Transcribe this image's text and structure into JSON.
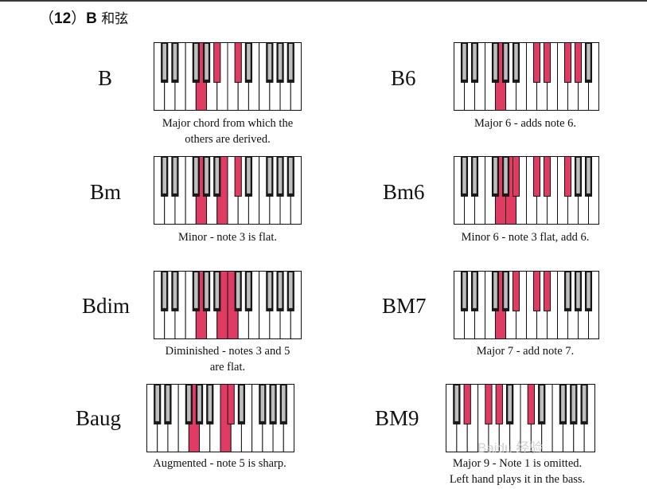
{
  "heading": {
    "num": "12",
    "note": "B",
    "zh": "和弦"
  },
  "colors": {
    "highlight": "#e03b62",
    "black_key": "#1b1b1b",
    "black_key_face": "#bfbfbf",
    "white_key": "#ffffff",
    "outline": "#111111"
  },
  "chords": [
    {
      "name": "B",
      "caption": [
        "Major chord from which the",
        "others are derived."
      ],
      "white_hl": [
        4
      ],
      "black_hl": [
        4,
        5
      ]
    },
    {
      "name": "B6",
      "caption": [
        "Major 6 - adds note 6."
      ],
      "white_hl": [
        4
      ],
      "black_hl": [
        5,
        6,
        7,
        8
      ]
    },
    {
      "name": "Bm",
      "caption": [
        "Minor - note 3 is flat."
      ],
      "white_hl": [
        4,
        6
      ],
      "black_hl": [
        5
      ]
    },
    {
      "name": "Bm6",
      "caption": [
        "Minor 6 - note 3 flat, add 6."
      ],
      "white_hl": [
        4,
        5
      ],
      "black_hl": [
        4,
        5,
        6,
        7
      ]
    },
    {
      "name": "Bdim",
      "caption": [
        "Diminished - notes 3 and 5",
        "are flat."
      ],
      "white_hl": [
        4,
        6,
        7
      ],
      "black_hl": []
    },
    {
      "name": "BM7",
      "caption": [
        "Major 7 - add note 7."
      ],
      "white_hl": [
        4
      ],
      "black_hl": [
        4,
        5,
        6
      ]
    },
    {
      "name": "Baug",
      "caption": [
        "Augmented - note 5 is sharp."
      ],
      "white_hl": [
        4,
        7
      ],
      "black_hl": [
        5
      ]
    },
    {
      "name": "BM9",
      "caption": [
        "Major 9 - Note 1 is omitted.",
        "Left hand plays it in the bass."
      ],
      "white_hl": [],
      "black_hl": [
        1,
        2,
        3,
        5
      ]
    }
  ],
  "watermark": "Baidu 经验"
}
